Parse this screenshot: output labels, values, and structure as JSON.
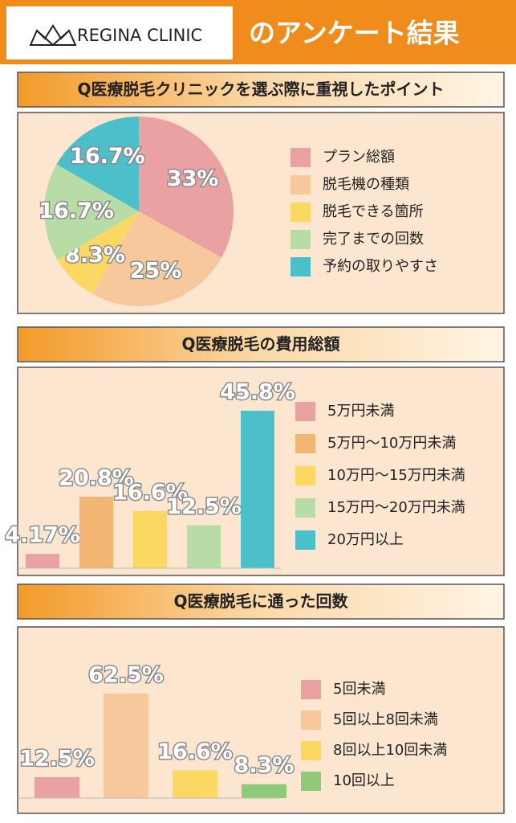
{
  "header": {
    "logo": "REGINA CLINIC",
    "title": "のアンケート結果"
  },
  "chart_data": [
    {
      "type": "pie",
      "title": "Q医療脱毛クリニックを選ぶ際に重視したポイント",
      "categories": [
        "プラン総額",
        "脱毛機の種類",
        "脱毛できる箇所",
        "完了までの回数",
        "予約の取りやすさ"
      ],
      "values": [
        33,
        25,
        8.3,
        16.7,
        16.7
      ],
      "value_labels": [
        "33%",
        "25%",
        "8.3%",
        "16.7%",
        "16.7%"
      ],
      "colors": [
        "#e9a1a1",
        "#f7c89c",
        "#fbd862",
        "#b7dca6",
        "#4bbfca"
      ]
    },
    {
      "type": "bar",
      "title": "Q医療脱毛の費用総額",
      "categories": [
        "5万円未満",
        "5万円〜10万円未満",
        "10万円〜15万円未満",
        "15万円〜20万円未満",
        "20万円以上"
      ],
      "values": [
        4.17,
        20.8,
        16.6,
        12.5,
        45.8
      ],
      "value_labels": [
        "4.17%",
        "20.8%",
        "16.6%",
        "12.5%",
        "45.8%"
      ],
      "colors": [
        "#e9a1a1",
        "#f2b574",
        "#fbd862",
        "#b7dca6",
        "#4bbfca"
      ]
    },
    {
      "type": "bar",
      "title": "Q医療脱毛に通った回数",
      "categories": [
        "5回未満",
        "5回以上8回未満",
        "8回以上10回未満",
        "10回以上"
      ],
      "values": [
        12.5,
        62.5,
        16.6,
        8.3
      ],
      "value_labels": [
        "12.5%",
        "62.5%",
        "16.6%",
        "8.3%"
      ],
      "colors": [
        "#e9a1a1",
        "#f7c89c",
        "#fbd862",
        "#8fca7b"
      ]
    }
  ]
}
